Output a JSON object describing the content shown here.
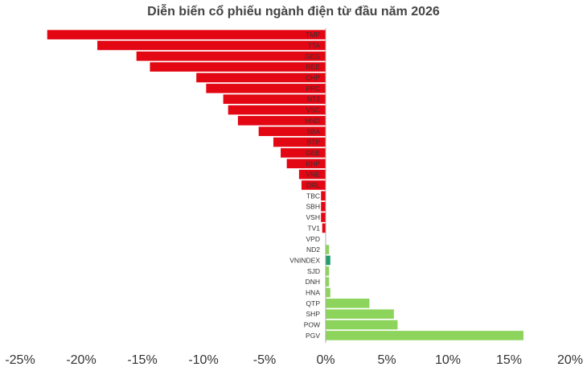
{
  "chart_data": {
    "type": "bar",
    "orientation": "horizontal",
    "title": "Diễn biến cổ phiếu ngành điện từ đầu năm 2026",
    "xlabel": "",
    "ylabel": "",
    "xlim": [
      -25,
      20
    ],
    "x_ticks": [
      "-25%",
      "-20%",
      "-15%",
      "-10%",
      "-5%",
      "0%",
      "5%",
      "10%",
      "15%",
      "20%"
    ],
    "x_tick_values": [
      -25,
      -20,
      -15,
      -10,
      -5,
      0,
      5,
      10,
      15,
      20
    ],
    "grid": false,
    "legend": "none",
    "categories": [
      "TMP",
      "TTA",
      "GEG",
      "REE",
      "CHP",
      "PPC",
      "NT2",
      "VSC",
      "HND",
      "SBA",
      "BTP",
      "GEE",
      "KHP",
      "VNE",
      "DRL",
      "TBC",
      "SBH",
      "VSH",
      "TV1",
      "VPD",
      "ND2",
      "VNINDEX",
      "SJD",
      "DNH",
      "HNA",
      "QTP",
      "SHP",
      "POW",
      "PGV"
    ],
    "values": [
      -22.8,
      -18.7,
      -15.5,
      -14.4,
      -10.6,
      -9.8,
      -8.4,
      -8.0,
      -7.2,
      -5.5,
      -4.3,
      -3.7,
      -3.2,
      -2.2,
      -2.0,
      -0.4,
      -0.4,
      -0.4,
      -0.3,
      0.0,
      0.3,
      0.4,
      0.3,
      0.3,
      0.4,
      3.6,
      5.6,
      5.9,
      16.2
    ],
    "colors": {
      "negative": "#e30613",
      "positive": "#8cd45b",
      "index": "#1f9e6b",
      "axis": "#999999"
    }
  }
}
